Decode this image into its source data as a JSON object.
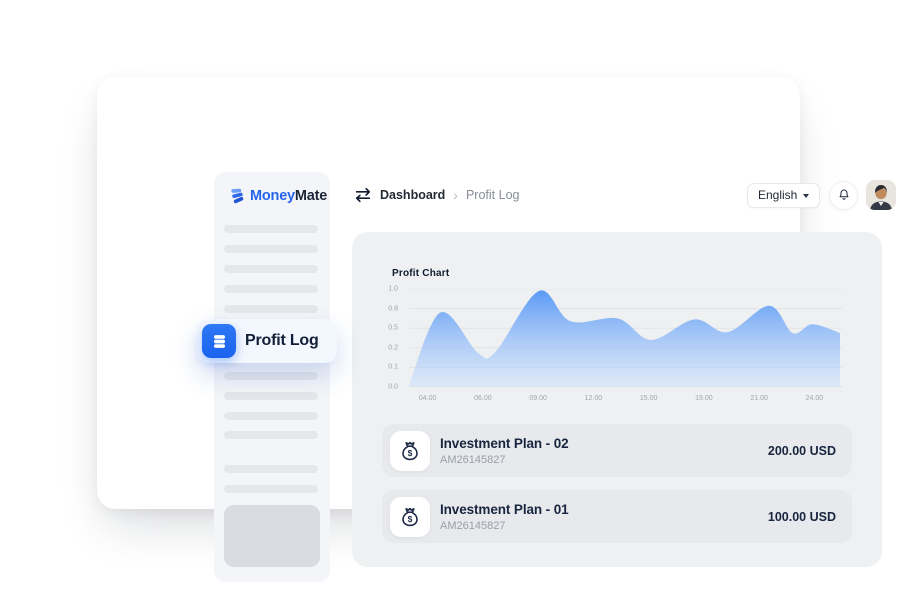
{
  "brand": {
    "part1": "Money",
    "part2": "Mate"
  },
  "header": {
    "breadcrumb": {
      "items": [
        "Dashboard",
        "Profit Log"
      ]
    },
    "language_button": {
      "label": "English"
    },
    "icons": {
      "chevron": "›"
    }
  },
  "sidebar": {
    "active_item": {
      "label": "Profit Log"
    }
  },
  "main": {
    "chart_title": "Profit Chart",
    "transactions": [
      {
        "title": "Investment Plan - 02",
        "code": "AM26145827",
        "amount": "200.00 USD"
      },
      {
        "title": "Investment Plan - 01",
        "code": "AM26145827",
        "amount": "100.00 USD"
      }
    ]
  },
  "icons": {
    "dollar": "$"
  },
  "colors": {
    "accent_blue": "#2166f3",
    "dark_navy_text": "#18253f",
    "muted_text": "#99a0aa",
    "panel_gray": "#eef0f2",
    "item_gray": "#e7e9ec"
  },
  "chart_data": {
    "type": "area",
    "title": "Profit Chart",
    "x_ticks": [
      "04.00",
      "06.00",
      "09.00",
      "12.00",
      "15.00",
      "19.00",
      "21.00",
      "24.00"
    ],
    "y_ticks": [
      "1.0",
      "0.8",
      "0.5",
      "0.2",
      "0.1",
      "0.0"
    ],
    "ylim": [
      0,
      1
    ],
    "xlim_hours": [
      3,
      25
    ],
    "grid": true,
    "legend": false,
    "fill_gradient": [
      "#5697f5",
      "#cfe2fc"
    ],
    "series": [
      {
        "name": "profit",
        "points": [
          [
            3.0,
            0.02
          ],
          [
            4.6,
            0.76
          ],
          [
            6.5,
            0.35
          ],
          [
            7.4,
            0.36
          ],
          [
            9.6,
            0.98
          ],
          [
            11.2,
            0.67
          ],
          [
            13.6,
            0.7
          ],
          [
            15.3,
            0.48
          ],
          [
            17.5,
            0.69
          ],
          [
            19.2,
            0.56
          ],
          [
            21.3,
            0.83
          ],
          [
            22.5,
            0.55
          ],
          [
            23.5,
            0.64
          ],
          [
            24.9,
            0.55
          ]
        ]
      }
    ]
  }
}
